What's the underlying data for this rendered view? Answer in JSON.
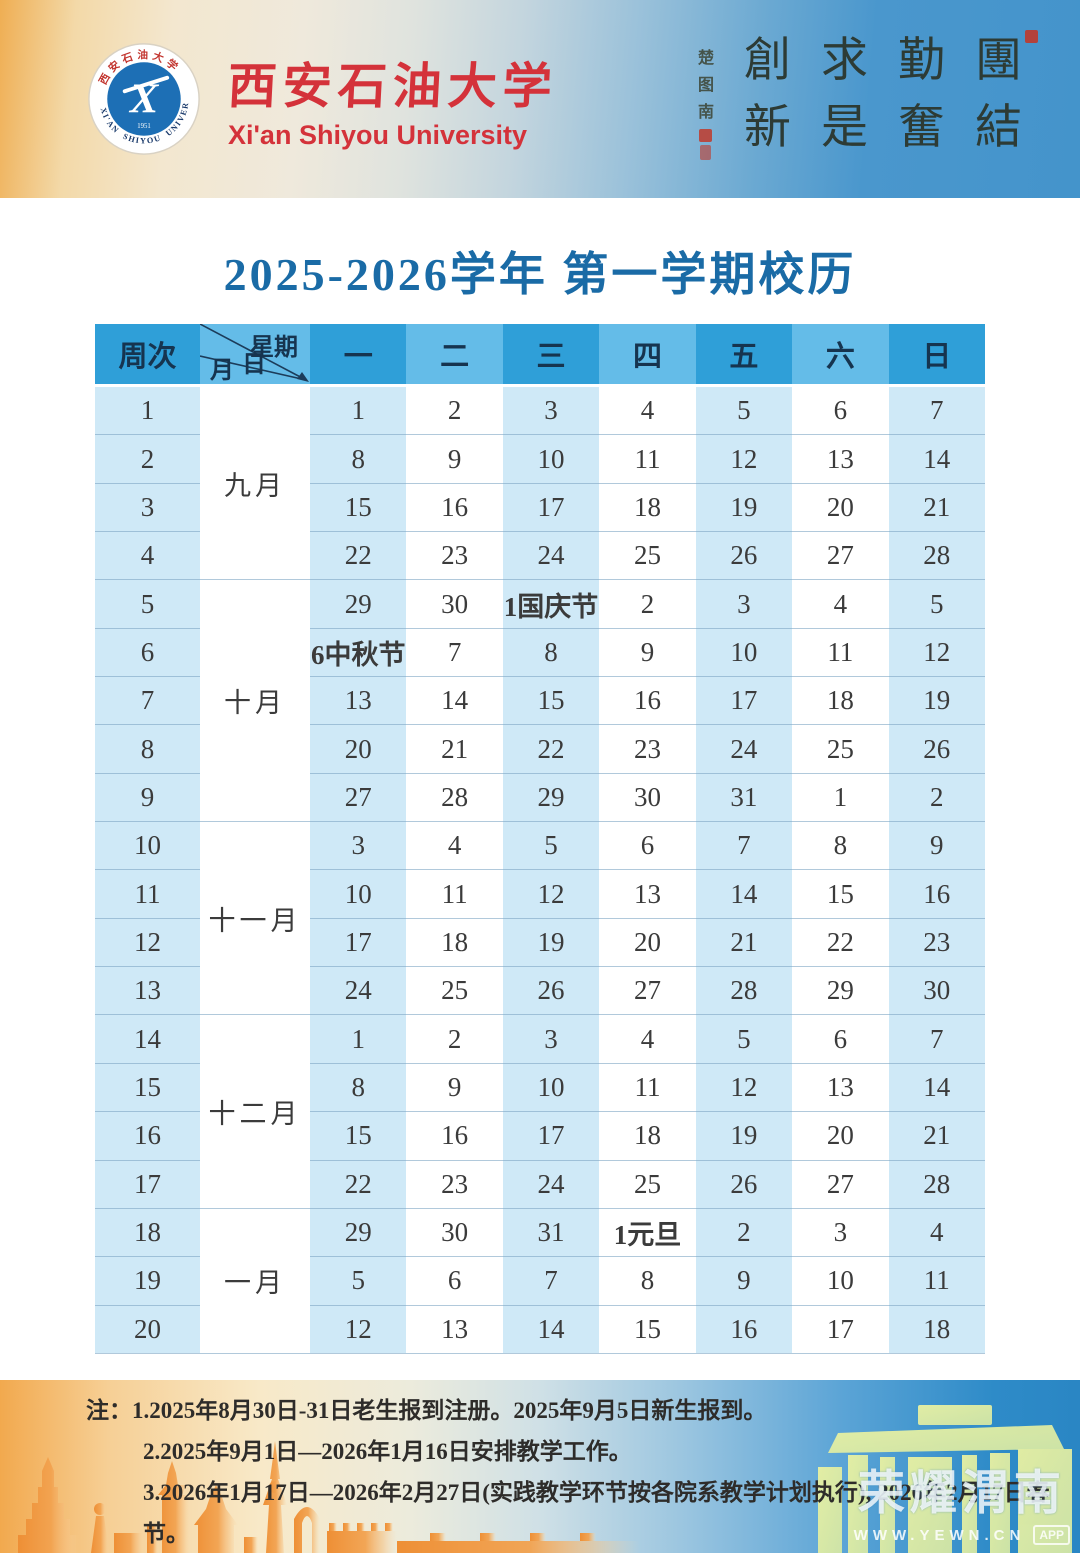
{
  "hero": {
    "university_cn": "西安石油大学",
    "university_en": "Xi'an Shiyou University",
    "badge": {
      "ring_top": "西安石油大学",
      "ring_bottom": "XI'AN SHIYOU UNIVERSITY",
      "year": "1951",
      "monogram": "X"
    },
    "motto_columns": [
      [
        "創",
        "新"
      ],
      [
        "求",
        "是"
      ],
      [
        "勤",
        "奮"
      ],
      [
        "團",
        "結"
      ]
    ],
    "signature": [
      "楚",
      "图",
      "南"
    ]
  },
  "title": "2025-2026学年 第一学期校历",
  "table": {
    "corner": {
      "week": "周次",
      "top": "星期",
      "mid": "日",
      "bottom": "月"
    },
    "day_headers": [
      "一",
      "二",
      "三",
      "四",
      "五",
      "六",
      "日"
    ],
    "months": [
      {
        "label": "九月",
        "span": 4
      },
      {
        "label": "十月",
        "span": 5
      },
      {
        "label": "十一月",
        "span": 4
      },
      {
        "label": "十二月",
        "span": 4
      },
      {
        "label": "一月",
        "span": 3
      }
    ],
    "weeks": [
      {
        "num": "1",
        "days": [
          "1",
          "2",
          "3",
          "4",
          "5",
          "6",
          "7"
        ]
      },
      {
        "num": "2",
        "days": [
          "8",
          "9",
          "10",
          "11",
          "12",
          "13",
          "14"
        ]
      },
      {
        "num": "3",
        "days": [
          "15",
          "16",
          "17",
          "18",
          "19",
          "20",
          "21"
        ]
      },
      {
        "num": "4",
        "days": [
          "22",
          "23",
          "24",
          "25",
          "26",
          "27",
          "28"
        ]
      },
      {
        "num": "5",
        "days": [
          "29",
          "30",
          "1国庆节",
          "2",
          "3",
          "4",
          "5"
        ]
      },
      {
        "num": "6",
        "days": [
          "6中秋节",
          "7",
          "8",
          "9",
          "10",
          "11",
          "12"
        ]
      },
      {
        "num": "7",
        "days": [
          "13",
          "14",
          "15",
          "16",
          "17",
          "18",
          "19"
        ]
      },
      {
        "num": "8",
        "days": [
          "20",
          "21",
          "22",
          "23",
          "24",
          "25",
          "26"
        ]
      },
      {
        "num": "9",
        "days": [
          "27",
          "28",
          "29",
          "30",
          "31",
          "1",
          "2"
        ]
      },
      {
        "num": "10",
        "days": [
          "3",
          "4",
          "5",
          "6",
          "7",
          "8",
          "9"
        ]
      },
      {
        "num": "11",
        "days": [
          "10",
          "11",
          "12",
          "13",
          "14",
          "15",
          "16"
        ]
      },
      {
        "num": "12",
        "days": [
          "17",
          "18",
          "19",
          "20",
          "21",
          "22",
          "23"
        ]
      },
      {
        "num": "13",
        "days": [
          "24",
          "25",
          "26",
          "27",
          "28",
          "29",
          "30"
        ]
      },
      {
        "num": "14",
        "days": [
          "1",
          "2",
          "3",
          "4",
          "5",
          "6",
          "7"
        ]
      },
      {
        "num": "15",
        "days": [
          "8",
          "9",
          "10",
          "11",
          "12",
          "13",
          "14"
        ]
      },
      {
        "num": "16",
        "days": [
          "15",
          "16",
          "17",
          "18",
          "19",
          "20",
          "21"
        ]
      },
      {
        "num": "17",
        "days": [
          "22",
          "23",
          "24",
          "25",
          "26",
          "27",
          "28"
        ]
      },
      {
        "num": "18",
        "days": [
          "29",
          "30",
          "31",
          "1元旦",
          "2",
          "3",
          "4"
        ]
      },
      {
        "num": "19",
        "days": [
          "5",
          "6",
          "7",
          "8",
          "9",
          "10",
          "11"
        ]
      },
      {
        "num": "20",
        "days": [
          "12",
          "13",
          "14",
          "15",
          "16",
          "17",
          "18"
        ]
      }
    ]
  },
  "notes": {
    "prefix": "注：",
    "items": [
      "1.2025年8月30日-31日老生报到注册。2025年9月5日新生报到。",
      "2.2025年9月1日—2026年1月16日安排教学工作。",
      "3.2026年1月17日—2026年2月27日(实践教学环节按各院系教学计划执行), 2026年2月17日春节。"
    ]
  },
  "watermark": {
    "text": "荣耀渭南",
    "url": "WWW.YEWN.CN",
    "app": "APP"
  },
  "colors": {
    "title": "#1a6ba6",
    "header_dark": "#2f9fd8",
    "header_light": "#64bce8",
    "header_weekend": "#c9364a",
    "cell_blue": "#cfe9f7",
    "weekend": "#a34b5b",
    "holiday": "#d63a3e",
    "brand_red": "#d4323a"
  }
}
